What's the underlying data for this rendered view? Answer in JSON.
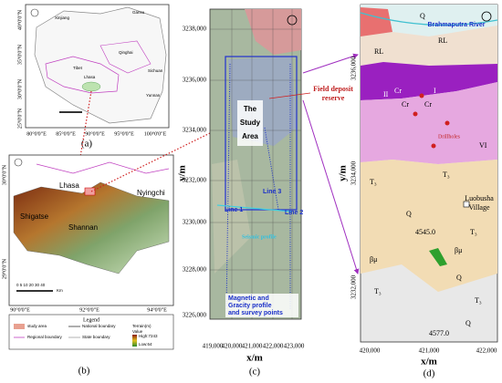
{
  "panel_a": {
    "caption": "(a)",
    "regions": [
      "Xinjiang",
      "Gansu",
      "Qinghai",
      "Tibet",
      "Lhasa",
      "Sichuan",
      "Yunnan"
    ],
    "lat_labels": [
      "40°0'0\"N",
      "35°0'0\"N",
      "30°0'0\"N",
      "25°0'0\"N"
    ],
    "lon_labels": [
      "80°0'0\"E",
      "85°0'0\"E",
      "90°0'0\"E",
      "95°0'0\"E",
      "100°0'0\"E"
    ]
  },
  "panel_b": {
    "caption": "(b)",
    "places": [
      "Lhasa",
      "Nyingchi",
      "Shigatse",
      "Shannan"
    ],
    "lat_labels": [
      "30°0'0\"N",
      "29°0'0\"N"
    ],
    "lon_labels": [
      "90°0'0\"E",
      "92°0'0\"E",
      "94°0'0\"E"
    ],
    "scale": "0 5 10 20 30 40",
    "scale_unit": "Km",
    "legend": {
      "title": "Legend",
      "study_area": "study area",
      "national": "National boundary",
      "terrain": "Terrain(m)",
      "regional": "Regional boundary",
      "state": "State boundary",
      "value": "Value",
      "high": "High:7243",
      "low": "Low:64"
    }
  },
  "panel_c": {
    "caption": "(c)",
    "y_axis": "y/m",
    "x_axis": "x/m",
    "yticks": [
      "3238,000",
      "3236,000",
      "3234,000",
      "3232,000",
      "3230,000",
      "3228,000",
      "3226,000"
    ],
    "xticks": [
      "419,000",
      "420,000",
      "421,000",
      "422,000",
      "423,000"
    ],
    "study_area": [
      "The",
      "Study",
      "Area"
    ],
    "lines": [
      "Line 1",
      "Line 2",
      "Line 3"
    ],
    "seismic": "Seismic profile",
    "magnetic": [
      "Magnetic and",
      "Gracity profile",
      "and survey points"
    ]
  },
  "annotation": [
    "Field deposit",
    "reserve"
  ],
  "panel_d": {
    "caption": "(d)",
    "y_axis": "y/m",
    "x_axis": "x/m",
    "yticks": [
      "3236,000",
      "3234,000",
      "3232,000"
    ],
    "xticks": [
      "420,000",
      "421,000",
      "422,000"
    ],
    "river": "Brahmaputra River",
    "drillholes": "Drillholes",
    "village": [
      "Luobusha",
      "Village"
    ],
    "units": [
      "Q",
      "RL",
      "RL",
      "Cr",
      "II",
      "Cr",
      "Cr",
      "I",
      "VI",
      "T₃",
      "T₃",
      "Q",
      "T₃",
      "βμ",
      "βμ",
      "T₃",
      "Q",
      "T₃",
      "Q"
    ],
    "elevations": [
      "4545.0",
      "4577.0"
    ]
  }
}
